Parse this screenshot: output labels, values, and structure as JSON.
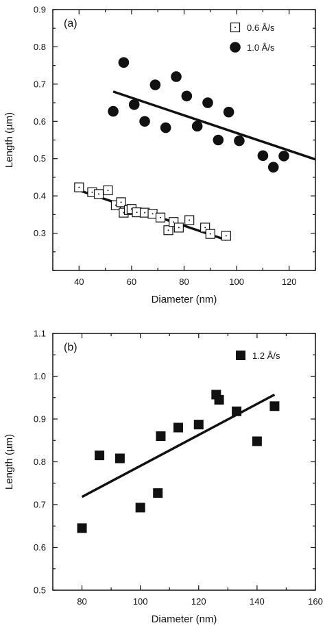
{
  "chart_data": [
    {
      "type": "scatter",
      "panel_label": "(a)",
      "xlabel": "Diameter (nm)",
      "ylabel": "Length (µm)",
      "xlim": [
        30,
        130
      ],
      "ylim": [
        0.2,
        0.9
      ],
      "xticks": [
        40,
        60,
        80,
        100,
        120
      ],
      "yticks": [
        0.3,
        0.4,
        0.5,
        0.6,
        0.7,
        0.8,
        0.9
      ],
      "ytick_labels": [
        "0.3",
        "0.4",
        "0.5",
        "0.6",
        "0.7",
        "0.8",
        "0.9"
      ],
      "grid": false,
      "legend_position": "top-right",
      "series": [
        {
          "name": "0.6 Å/s",
          "marker": "open-square-dot",
          "points": [
            [
              40,
              0.423
            ],
            [
              45,
              0.41
            ],
            [
              47.5,
              0.405
            ],
            [
              51,
              0.415
            ],
            [
              54,
              0.375
            ],
            [
              56,
              0.383
            ],
            [
              57,
              0.355
            ],
            [
              59,
              0.362
            ],
            [
              60,
              0.365
            ],
            [
              62,
              0.356
            ],
            [
              65,
              0.355
            ],
            [
              68,
              0.352
            ],
            [
              71,
              0.342
            ],
            [
              74,
              0.308
            ],
            [
              76,
              0.33
            ],
            [
              78,
              0.315
            ],
            [
              82,
              0.335
            ],
            [
              88,
              0.315
            ],
            [
              90,
              0.298
            ],
            [
              96,
              0.293
            ]
          ],
          "fit": [
            [
              40,
              0.415
            ],
            [
              96,
              0.282
            ]
          ]
        },
        {
          "name": "1.0 Å/s",
          "marker": "filled-circle",
          "points": [
            [
              53,
              0.627
            ],
            [
              57,
              0.758
            ],
            [
              61,
              0.645
            ],
            [
              65,
              0.6
            ],
            [
              69,
              0.698
            ],
            [
              73,
              0.583
            ],
            [
              77,
              0.72
            ],
            [
              81,
              0.668
            ],
            [
              85,
              0.587
            ],
            [
              89,
              0.65
            ],
            [
              93,
              0.55
            ],
            [
              97,
              0.625
            ],
            [
              101,
              0.548
            ],
            [
              110,
              0.508
            ],
            [
              114,
              0.477
            ],
            [
              118,
              0.507
            ]
          ],
          "fit": [
            [
              53,
              0.68
            ],
            [
              130,
              0.498
            ]
          ]
        }
      ]
    },
    {
      "type": "scatter",
      "panel_label": "(b)",
      "xlabel": "Diameter (nm)",
      "ylabel": "Length (µm)",
      "xlim": [
        70,
        160
      ],
      "ylim": [
        0.5,
        1.1
      ],
      "xticks": [
        80,
        100,
        120,
        140,
        160
      ],
      "yticks": [
        0.5,
        0.6,
        0.7,
        0.8,
        0.9,
        1.0,
        1.1
      ],
      "ytick_labels": [
        "0.5",
        "0.6",
        "0.7",
        "0.8",
        "0.9",
        "1.0",
        "1.1"
      ],
      "grid": false,
      "legend_position": "top-right",
      "series": [
        {
          "name": "1.2 Å/s",
          "marker": "filled-square",
          "points": [
            [
              80,
              0.645
            ],
            [
              86,
              0.815
            ],
            [
              93,
              0.808
            ],
            [
              100,
              0.693
            ],
            [
              106,
              0.727
            ],
            [
              107,
              0.86
            ],
            [
              113,
              0.88
            ],
            [
              120,
              0.887
            ],
            [
              126,
              0.957
            ],
            [
              127,
              0.945
            ],
            [
              133,
              0.918
            ],
            [
              140,
              0.848
            ],
            [
              146,
              0.93
            ]
          ],
          "fit": [
            [
              80,
              0.718
            ],
            [
              146,
              0.957
            ]
          ]
        }
      ]
    }
  ]
}
